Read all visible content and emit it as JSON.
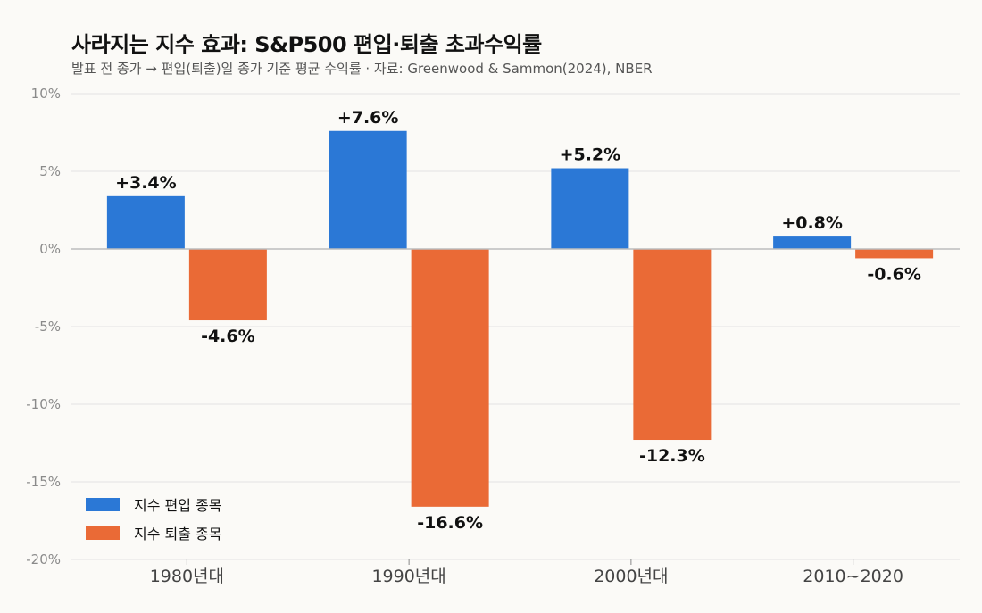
{
  "title": "사라지는 지수 효과: S&P500 편입·퇴출 초과수익률",
  "subtitle": "발표 전 종가 → 편입(퇴출)일 종가 기준 평균 수익률 · 자료: Greenwood & Sammon(2024), NBER",
  "colors": {
    "series_1": "#2b78d6",
    "series_2": "#ea6a36",
    "grid": "#e3e3e3",
    "zero_line": "#bdbdbd"
  },
  "chart_data": {
    "type": "bar",
    "categories": [
      "1980년대",
      "1990년대",
      "2000년대",
      "2010~2020"
    ],
    "series": [
      {
        "name": "지수 편입 종목",
        "values": [
          3.4,
          7.6,
          5.2,
          0.8
        ],
        "labels": [
          "+3.4%",
          "+7.6%",
          "+5.2%",
          "+0.8%"
        ]
      },
      {
        "name": "지수 퇴출 종목",
        "values": [
          -4.6,
          -16.6,
          -12.3,
          -0.6
        ],
        "labels": [
          "-4.6%",
          "-16.6%",
          "-12.3%",
          "-0.6%"
        ]
      }
    ],
    "ylim": [
      -20,
      10
    ],
    "yticks": [
      10,
      5,
      0,
      -5,
      -10,
      -15,
      -20
    ],
    "ytick_labels": [
      "10%",
      "5%",
      "0%",
      "-5%",
      "-10%",
      "-15%",
      "-20%"
    ],
    "grid": true,
    "legend_position": "bottom-left"
  }
}
